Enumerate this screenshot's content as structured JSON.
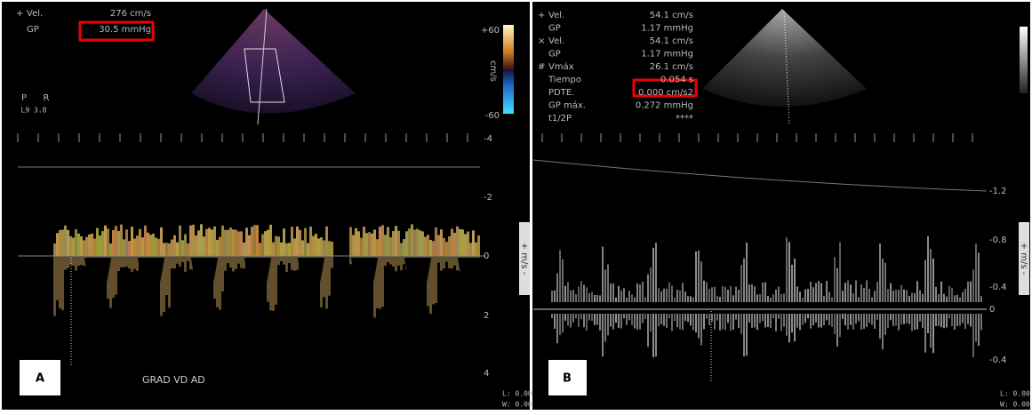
{
  "panel_a": {
    "label": "A",
    "measurements": [
      {
        "marker": "+",
        "name": "Vel.",
        "value": "276 cm/s"
      },
      {
        "name": "GP",
        "value": "30.5 mmHg"
      }
    ],
    "color_scale": [
      "+60",
      "-60"
    ],
    "color_scale_unit": "cm/s",
    "probe": [
      "P",
      "R"
    ],
    "probe_setting": "L9 3.8",
    "velocity_scale": [
      "-4",
      "-2",
      "0",
      "2",
      "4"
    ],
    "velocity_unit": "+ m/s -",
    "annotation": "GRAD VD AD",
    "footer": [
      "L: 0.00",
      "W: 0.00"
    ]
  },
  "panel_b": {
    "label": "B",
    "measurements": [
      {
        "marker": "+",
        "name": "Vel.",
        "value": "54.1 cm/s"
      },
      {
        "name": "GP",
        "value": "1.17 mmHg"
      },
      {
        "marker": "×",
        "name": "Vel.",
        "value": "54.1 cm/s"
      },
      {
        "name": "GP",
        "value": "1.17 mmHg"
      },
      {
        "marker": "#",
        "name": "Vmáx",
        "value": "26.1 cm/s"
      },
      {
        "name": "Tiempo",
        "value": "0.054 s"
      },
      {
        "name": "PDTE.",
        "value": "0.000 cm/s2"
      },
      {
        "name": "GP máx.",
        "value": "0.272 mmHg"
      },
      {
        "name": "t1/2P",
        "value": "****"
      }
    ],
    "velocity_scale": [
      "-1.2",
      "-0.8",
      "-0.4",
      "0",
      "-0.4"
    ],
    "velocity_unit": "+ m/s -",
    "footer": [
      "L: 0.00",
      "W: 0.00"
    ]
  }
}
